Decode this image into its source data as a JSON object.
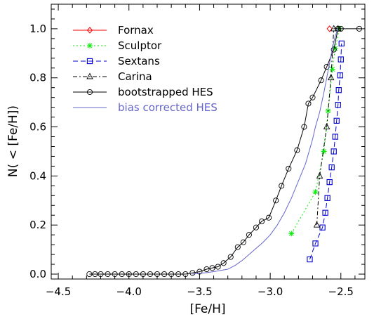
{
  "chart_data": {
    "type": "line",
    "xlabel": "[Fe/H]",
    "ylabel": "N( < [Fe/H])",
    "xlim": [
      -4.55,
      -2.33
    ],
    "ylim": [
      -0.02,
      1.1
    ],
    "x_ticks": [
      -4.5,
      -4.0,
      -3.5,
      -3.0,
      -2.5
    ],
    "x_tick_labels": [
      "−4.5",
      "−4.0",
      "−3.5",
      "−3.0",
      "−2.5"
    ],
    "y_ticks": [
      0.0,
      0.2,
      0.4,
      0.6,
      0.8,
      1.0
    ],
    "y_tick_labels": [
      "0.0",
      "0.2",
      "0.4",
      "0.6",
      "0.8",
      "1.0"
    ],
    "grid": false,
    "legend_position": "top-left",
    "series": [
      {
        "name": "Fornax",
        "color": "#ff0000",
        "marker": "diamond",
        "line": "solid",
        "x": [
          -2.58
        ],
        "y": [
          1.0
        ]
      },
      {
        "name": "Sculptor",
        "color": "#00ee00",
        "marker": "asterisk",
        "line": "dotted",
        "x": [
          -2.85,
          -2.68,
          -2.62,
          -2.59,
          -2.56,
          -2.54,
          -2.51
        ],
        "y": [
          0.165,
          0.335,
          0.5,
          0.665,
          0.835,
          0.92,
          1.0
        ]
      },
      {
        "name": "Sextans",
        "color": "#0000cc",
        "marker": "square",
        "line": "dashed",
        "x": [
          -2.72,
          -2.68,
          -2.63,
          -2.61,
          -2.595,
          -2.58,
          -2.565,
          -2.55,
          -2.54,
          -2.53,
          -2.52,
          -2.515,
          -2.505,
          -2.5,
          -2.495
        ],
        "y": [
          0.06,
          0.125,
          0.19,
          0.25,
          0.31,
          0.375,
          0.435,
          0.5,
          0.56,
          0.625,
          0.69,
          0.75,
          0.81,
          0.875,
          0.94
        ]
      },
      {
        "name": "Carina",
        "color": "#000000",
        "marker": "triangle",
        "line": "dashdot",
        "x": [
          -2.67,
          -2.65,
          -2.6,
          -2.57,
          -2.55,
          -2.52
        ],
        "y": [
          0.2,
          0.4,
          0.6,
          0.8,
          1.0,
          1.0
        ]
      },
      {
        "name": "bootstrapped HES",
        "color": "#000000",
        "marker": "circle",
        "line": "solid",
        "x": [
          -4.28,
          -4.24,
          -4.2,
          -4.15,
          -4.1,
          -4.05,
          -4.0,
          -3.95,
          -3.9,
          -3.85,
          -3.8,
          -3.75,
          -3.7,
          -3.65,
          -3.6,
          -3.55,
          -3.5,
          -3.45,
          -3.41,
          -3.37,
          -3.33,
          -3.28,
          -3.23,
          -3.19,
          -3.15,
          -3.1,
          -3.06,
          -3.01,
          -2.96,
          -2.92,
          -2.87,
          -2.81,
          -2.76,
          -2.73,
          -2.7,
          -2.64,
          -2.6,
          -2.55,
          -2.52,
          -2.5,
          -2.37
        ],
        "y": [
          0.0,
          0.0,
          0.0,
          0.0,
          0.0,
          0.0,
          0.0,
          0.0,
          0.0,
          0.0,
          0.0,
          0.0,
          0.0,
          0.0,
          0.0,
          0.005,
          0.01,
          0.02,
          0.025,
          0.03,
          0.045,
          0.07,
          0.11,
          0.13,
          0.16,
          0.19,
          0.215,
          0.23,
          0.3,
          0.36,
          0.43,
          0.505,
          0.6,
          0.695,
          0.72,
          0.79,
          0.845,
          0.915,
          1.0,
          1.0,
          1.0
        ]
      },
      {
        "name": "bias corrected HES",
        "color": "#6666cc",
        "marker": "none",
        "line": "solid",
        "x": [
          -3.55,
          -3.5,
          -3.45,
          -3.4,
          -3.35,
          -3.3,
          -3.25,
          -3.2,
          -3.15,
          -3.1,
          -3.05,
          -3.0,
          -2.95,
          -2.9,
          -2.85,
          -2.8,
          -2.75,
          -2.7,
          -2.68,
          -2.65,
          -2.62,
          -2.6,
          -2.58,
          -2.56,
          -2.54,
          -2.52
        ],
        "y": [
          0.0,
          0.003,
          0.006,
          0.01,
          0.015,
          0.02,
          0.035,
          0.055,
          0.08,
          0.105,
          0.13,
          0.16,
          0.2,
          0.25,
          0.31,
          0.38,
          0.45,
          0.55,
          0.6,
          0.66,
          0.74,
          0.8,
          0.86,
          0.92,
          0.97,
          1.0
        ]
      }
    ]
  }
}
